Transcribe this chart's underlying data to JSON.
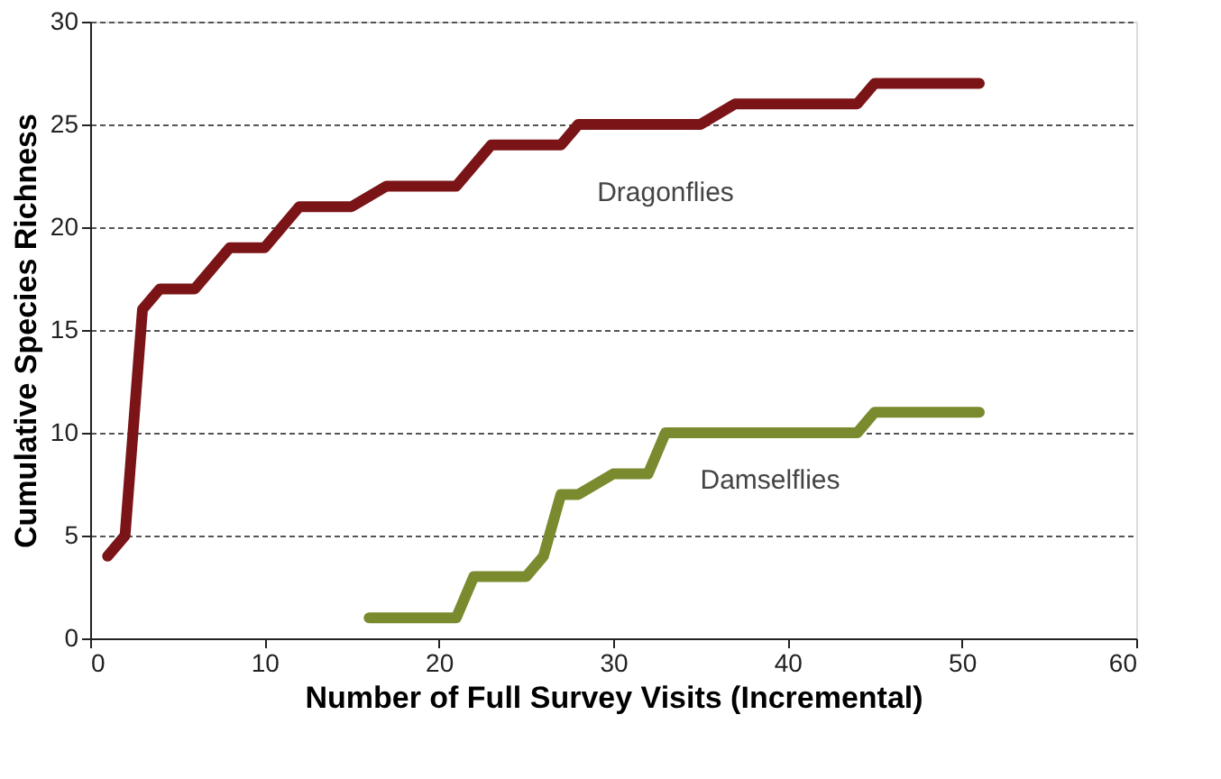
{
  "chart_data": {
    "type": "line",
    "xlabel": "Number of Full Survey Visits (Incremental)",
    "ylabel": "Cumulative Species Richness",
    "xlim": [
      0,
      60
    ],
    "xticks": [
      0,
      10,
      20,
      30,
      40,
      50,
      60
    ],
    "ylim": [
      0,
      30
    ],
    "yticks": [
      0,
      5,
      10,
      15,
      20,
      25,
      30
    ],
    "grid": "y",
    "legend": false,
    "marker": "none",
    "line_style": "solid",
    "series": [
      {
        "name": "Dragonflies",
        "color": "#7b1417",
        "x": [
          1,
          2,
          3,
          4,
          6,
          8,
          10,
          12,
          15,
          17,
          21,
          23,
          27,
          28,
          35,
          37,
          44,
          45,
          51
        ],
        "values": [
          4,
          5,
          16,
          17,
          17,
          19,
          19,
          21,
          21,
          22,
          22,
          24,
          24,
          25,
          25,
          26,
          26,
          27,
          27
        ]
      },
      {
        "name": "Damselflies",
        "color": "#7a8a2e",
        "x": [
          16,
          21,
          22,
          25,
          26,
          27,
          28,
          30,
          32,
          33,
          44,
          45,
          51
        ],
        "values": [
          1,
          1,
          3,
          3,
          4,
          7,
          7,
          8,
          8,
          10,
          10,
          11,
          11
        ]
      }
    ]
  }
}
